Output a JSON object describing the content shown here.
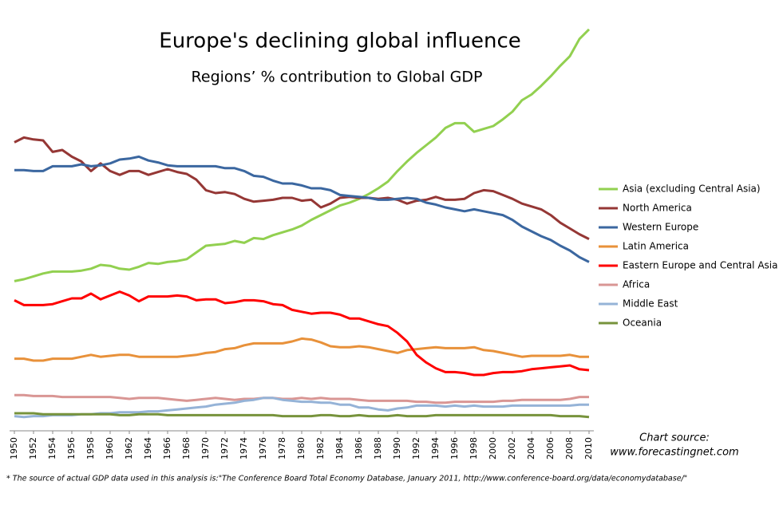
{
  "chart_data": {
    "type": "line",
    "title": "Europe's declining global influence",
    "subtitle": "Regions’ % contribution to Global GDP",
    "source": [
      "Chart source:",
      "www.forecastingnet.com"
    ],
    "footnote": "* The source of actual GDP data used in this analysis is:\"The Conference Board Total Economy Database, January 2011, http://www.conference-board.org/data/economydatabase/\"",
    "x": [
      1950,
      1951,
      1952,
      1953,
      1954,
      1955,
      1956,
      1957,
      1958,
      1959,
      1960,
      1961,
      1962,
      1963,
      1964,
      1965,
      1966,
      1967,
      1968,
      1969,
      1970,
      1971,
      1972,
      1973,
      1974,
      1975,
      1976,
      1977,
      1978,
      1979,
      1980,
      1981,
      1982,
      1983,
      1984,
      1985,
      1986,
      1987,
      1988,
      1989,
      1990,
      1991,
      1992,
      1993,
      1994,
      1995,
      1996,
      1997,
      1998,
      1999,
      2000,
      2001,
      2002,
      2003,
      2004,
      2005,
      2006,
      2007,
      2008,
      2009,
      2010
    ],
    "xlim": [
      1950,
      2010
    ],
    "xticks": [
      1950,
      1952,
      1954,
      1956,
      1958,
      1960,
      1962,
      1964,
      1966,
      1968,
      1970,
      1972,
      1974,
      1976,
      1978,
      1980,
      1982,
      1984,
      1986,
      1988,
      1990,
      1992,
      1994,
      1996,
      1998,
      2000,
      2002,
      2004,
      2006,
      2008,
      2010
    ],
    "ylim": [
      0,
      42
    ],
    "legend": "right",
    "series": [
      {
        "name": "Asia (excluding Central Asia)",
        "color": "#92d050",
        "values": [
          14.8,
          15.0,
          15.3,
          15.6,
          15.8,
          15.8,
          15.8,
          15.9,
          16.1,
          16.5,
          16.4,
          16.1,
          16.0,
          16.3,
          16.7,
          16.6,
          16.8,
          16.9,
          17.1,
          17.8,
          18.5,
          18.6,
          18.7,
          19.0,
          18.8,
          19.3,
          19.2,
          19.6,
          19.9,
          20.2,
          20.6,
          21.2,
          21.7,
          22.2,
          22.7,
          23.0,
          23.4,
          23.9,
          24.5,
          25.2,
          26.3,
          27.3,
          28.2,
          29.0,
          29.8,
          30.8,
          31.3,
          31.3,
          30.4,
          30.7,
          31.0,
          31.7,
          32.5,
          33.7,
          34.3,
          35.2,
          36.2,
          37.3,
          38.3,
          40.1,
          41.1
        ]
      },
      {
        "name": "North America",
        "color": "#953735",
        "values": [
          29.3,
          29.8,
          29.6,
          29.5,
          28.3,
          28.5,
          27.8,
          27.3,
          26.3,
          27.1,
          26.3,
          25.9,
          26.3,
          26.3,
          25.9,
          26.2,
          26.5,
          26.2,
          26.0,
          25.4,
          24.3,
          24.0,
          24.1,
          23.9,
          23.4,
          23.1,
          23.2,
          23.3,
          23.5,
          23.5,
          23.2,
          23.3,
          22.5,
          22.9,
          23.5,
          23.6,
          23.5,
          23.5,
          23.4,
          23.5,
          23.3,
          22.9,
          23.2,
          23.3,
          23.6,
          23.3,
          23.3,
          23.4,
          24.0,
          24.3,
          24.2,
          23.8,
          23.4,
          22.9,
          22.6,
          22.3,
          21.7,
          20.9,
          20.3,
          19.7,
          19.2
        ]
      },
      {
        "name": "Western Europe",
        "color": "#3b67a0",
        "values": [
          26.4,
          26.4,
          26.3,
          26.3,
          26.8,
          26.8,
          26.8,
          27.0,
          26.8,
          26.9,
          27.1,
          27.5,
          27.6,
          27.8,
          27.4,
          27.2,
          26.9,
          26.8,
          26.8,
          26.8,
          26.8,
          26.8,
          26.6,
          26.6,
          26.3,
          25.8,
          25.7,
          25.3,
          25.0,
          25.0,
          24.8,
          24.5,
          24.5,
          24.3,
          23.8,
          23.7,
          23.6,
          23.5,
          23.3,
          23.3,
          23.4,
          23.5,
          23.4,
          23.0,
          22.8,
          22.5,
          22.3,
          22.1,
          22.3,
          22.1,
          21.9,
          21.7,
          21.2,
          20.5,
          20.0,
          19.5,
          19.1,
          18.5,
          18.0,
          17.3,
          16.8
        ]
      },
      {
        "name": "Latin America",
        "color": "#e8913a",
        "values": [
          6.7,
          6.7,
          6.5,
          6.5,
          6.7,
          6.7,
          6.7,
          6.9,
          7.1,
          6.9,
          7.0,
          7.1,
          7.1,
          6.9,
          6.9,
          6.9,
          6.9,
          6.9,
          7.0,
          7.1,
          7.3,
          7.4,
          7.7,
          7.8,
          8.1,
          8.3,
          8.3,
          8.3,
          8.3,
          8.5,
          8.8,
          8.7,
          8.4,
          8.0,
          7.9,
          7.9,
          8.0,
          7.9,
          7.7,
          7.5,
          7.3,
          7.6,
          7.7,
          7.8,
          7.9,
          7.8,
          7.8,
          7.8,
          7.9,
          7.6,
          7.5,
          7.3,
          7.1,
          6.9,
          7.0,
          7.0,
          7.0,
          7.0,
          7.1,
          6.9,
          6.9
        ]
      },
      {
        "name": "Eastern Europe and Central Asia",
        "color": "#ff0000",
        "values": [
          12.8,
          12.3,
          12.3,
          12.3,
          12.4,
          12.7,
          13.0,
          13.0,
          13.5,
          12.9,
          13.3,
          13.7,
          13.3,
          12.7,
          13.2,
          13.2,
          13.2,
          13.3,
          13.2,
          12.8,
          12.9,
          12.9,
          12.5,
          12.6,
          12.8,
          12.8,
          12.7,
          12.4,
          12.3,
          11.8,
          11.6,
          11.4,
          11.5,
          11.5,
          11.3,
          10.9,
          10.9,
          10.6,
          10.3,
          10.1,
          9.4,
          8.5,
          7.1,
          6.3,
          5.7,
          5.3,
          5.3,
          5.2,
          5.0,
          5.0,
          5.2,
          5.3,
          5.3,
          5.4,
          5.6,
          5.7,
          5.8,
          5.9,
          6.0,
          5.6,
          5.5
        ]
      },
      {
        "name": "Africa",
        "color": "#d99694",
        "values": [
          2.9,
          2.9,
          2.8,
          2.8,
          2.8,
          2.7,
          2.7,
          2.7,
          2.7,
          2.7,
          2.7,
          2.6,
          2.5,
          2.6,
          2.6,
          2.6,
          2.5,
          2.4,
          2.3,
          2.4,
          2.5,
          2.6,
          2.5,
          2.4,
          2.5,
          2.5,
          2.6,
          2.6,
          2.5,
          2.5,
          2.6,
          2.5,
          2.6,
          2.5,
          2.5,
          2.5,
          2.4,
          2.3,
          2.3,
          2.3,
          2.3,
          2.3,
          2.2,
          2.2,
          2.1,
          2.1,
          2.2,
          2.2,
          2.2,
          2.2,
          2.2,
          2.3,
          2.3,
          2.4,
          2.4,
          2.4,
          2.4,
          2.4,
          2.5,
          2.7,
          2.7
        ]
      },
      {
        "name": "Middle East",
        "color": "#95b3d7",
        "values": [
          0.7,
          0.6,
          0.7,
          0.7,
          0.8,
          0.8,
          0.8,
          0.9,
          0.9,
          1.0,
          1.0,
          1.1,
          1.1,
          1.1,
          1.2,
          1.2,
          1.3,
          1.4,
          1.5,
          1.6,
          1.7,
          1.9,
          2.0,
          2.1,
          2.3,
          2.4,
          2.6,
          2.6,
          2.4,
          2.3,
          2.2,
          2.2,
          2.1,
          2.1,
          1.9,
          1.9,
          1.6,
          1.6,
          1.4,
          1.3,
          1.5,
          1.6,
          1.8,
          1.8,
          1.8,
          1.7,
          1.8,
          1.7,
          1.8,
          1.7,
          1.7,
          1.7,
          1.8,
          1.8,
          1.8,
          1.8,
          1.8,
          1.8,
          1.8,
          1.9,
          1.9
        ]
      },
      {
        "name": "Oceania",
        "color": "#77933c",
        "values": [
          1.0,
          1.0,
          1.0,
          0.9,
          0.9,
          0.9,
          0.9,
          0.9,
          0.9,
          0.9,
          0.9,
          0.8,
          0.8,
          0.9,
          0.9,
          0.9,
          0.8,
          0.8,
          0.8,
          0.8,
          0.8,
          0.8,
          0.8,
          0.8,
          0.8,
          0.8,
          0.8,
          0.8,
          0.7,
          0.7,
          0.7,
          0.7,
          0.8,
          0.8,
          0.7,
          0.7,
          0.8,
          0.7,
          0.7,
          0.7,
          0.8,
          0.7,
          0.7,
          0.7,
          0.8,
          0.8,
          0.8,
          0.8,
          0.8,
          0.8,
          0.8,
          0.8,
          0.8,
          0.8,
          0.8,
          0.8,
          0.8,
          0.7,
          0.7,
          0.7,
          0.6
        ]
      }
    ]
  }
}
